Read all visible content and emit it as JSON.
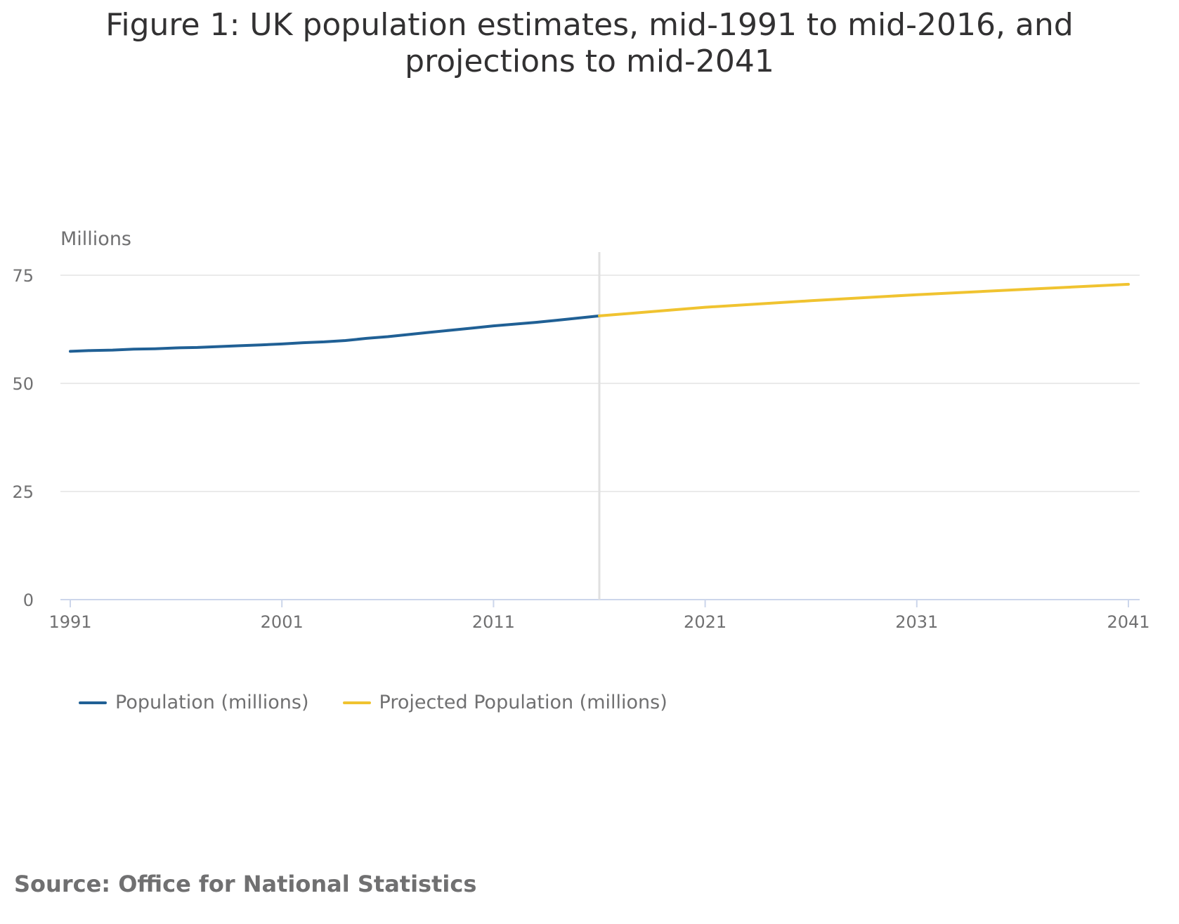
{
  "title": "Figure 1: UK population estimates, mid-1991 to mid-2016, and projections to mid-2041",
  "source": {
    "label": "Source:",
    "text": "Office for National Statistics"
  },
  "colors": {
    "population": "#206095",
    "projected": "#F0C330",
    "grid": "#E4E4E4",
    "axis": "#CCD6EB",
    "divider": "#E0E0E0",
    "text": "#707071"
  },
  "chart_data": {
    "type": "line",
    "ylabel": "Millions",
    "xlabel": "",
    "xlim": [
      1991,
      2041
    ],
    "ylim": [
      0,
      80
    ],
    "x_ticks": [
      1991,
      2001,
      2011,
      2021,
      2031,
      2041
    ],
    "y_ticks": [
      0,
      25,
      50,
      75
    ],
    "divider_x": 2016,
    "grid": true,
    "legend_position": "bottom-left",
    "series": [
      {
        "name": "Population (millions)",
        "key": "population",
        "x": [
          1991,
          1992,
          1993,
          1994,
          1995,
          1996,
          1997,
          1998,
          1999,
          2000,
          2001,
          2002,
          2003,
          2004,
          2005,
          2006,
          2007,
          2008,
          2009,
          2010,
          2011,
          2012,
          2013,
          2014,
          2015,
          2016
        ],
        "values": [
          57.4,
          57.6,
          57.7,
          57.9,
          58.0,
          58.2,
          58.3,
          58.5,
          58.7,
          58.9,
          59.1,
          59.4,
          59.6,
          59.9,
          60.4,
          60.8,
          61.3,
          61.8,
          62.3,
          62.8,
          63.3,
          63.7,
          64.1,
          64.6,
          65.1,
          65.6
        ]
      },
      {
        "name": "Projected Population (millions)",
        "key": "projected",
        "x": [
          2016,
          2018,
          2021,
          2026,
          2031,
          2036,
          2041
        ],
        "values": [
          65.6,
          66.4,
          67.6,
          69.1,
          70.5,
          71.7,
          72.9
        ]
      }
    ]
  }
}
